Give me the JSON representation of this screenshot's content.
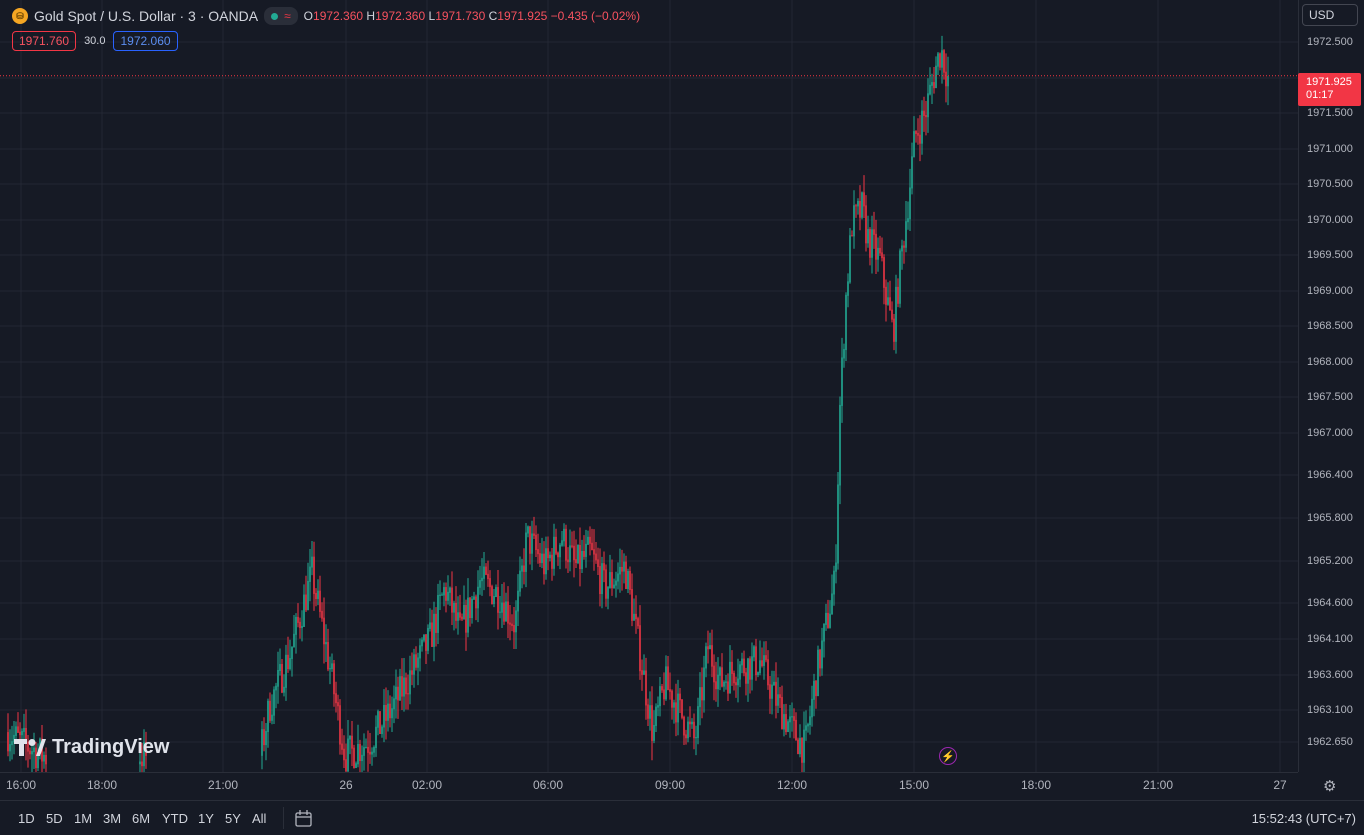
{
  "symbol": {
    "title": "Gold Spot / U.S. Dollar · 3 · OANDA",
    "icon": "gold-coin-icon",
    "status_icon": "market-status-dot-icon",
    "wave_icon": "wave-icon"
  },
  "ohlc": {
    "o_key": "O",
    "o_val": "1972.360",
    "h_key": "H",
    "h_val": "1972.360",
    "l_key": "L",
    "l_val": "1971.730",
    "c_key": "C",
    "c_val": "1971.925",
    "change": "−0.435 (−0.02%)"
  },
  "order": {
    "sell_price": "1971.760",
    "spread": "30.0",
    "buy_price": "1972.060"
  },
  "currency": "USD",
  "last_price": {
    "price": "1971.925",
    "countdown": "01:17"
  },
  "price_axis": [
    "1972.500",
    "1972.000",
    "1971.500",
    "1971.000",
    "1970.500",
    "1970.000",
    "1969.500",
    "1969.000",
    "1968.500",
    "1968.000",
    "1967.500",
    "1967.000",
    "1966.400",
    "1965.800",
    "1965.200",
    "1964.600",
    "1964.100",
    "1963.600",
    "1963.100",
    "1962.650"
  ],
  "time_axis": [
    "16:00",
    "18:00",
    "21:00",
    "26",
    "02:00",
    "06:00",
    "09:00",
    "12:00",
    "15:00",
    "18:00",
    "21:00",
    "27"
  ],
  "ranges": [
    "1D",
    "5D",
    "1M",
    "3M",
    "6M",
    "YTD",
    "1Y",
    "5Y",
    "All"
  ],
  "clock": "15:52:43 (UTC+7)",
  "logo": "TradingView",
  "colors": {
    "up": "#22ab94",
    "down": "#f23645",
    "background": "#161a25",
    "grid": "#232734"
  },
  "chart_data": {
    "type": "candlestick",
    "interval": "3",
    "ylim": [
      1962.4,
      1972.8
    ],
    "anchors": [
      [
        0,
        1963.0
      ],
      [
        20,
        1962.8
      ],
      [
        43,
        1962.6
      ],
      [
        110,
        1962.6
      ],
      [
        143,
        1962.6
      ],
      [
        260,
        1962.6
      ],
      [
        270,
        1963.3
      ],
      [
        290,
        1964.0
      ],
      [
        312,
        1965.1
      ],
      [
        330,
        1963.8
      ],
      [
        345,
        1962.6
      ],
      [
        370,
        1962.8
      ],
      [
        390,
        1963.2
      ],
      [
        410,
        1963.7
      ],
      [
        430,
        1964.2
      ],
      [
        445,
        1964.9
      ],
      [
        460,
        1964.3
      ],
      [
        480,
        1965.0
      ],
      [
        500,
        1964.8
      ],
      [
        515,
        1964.4
      ],
      [
        527,
        1965.6
      ],
      [
        545,
        1965.2
      ],
      [
        562,
        1965.6
      ],
      [
        575,
        1965.2
      ],
      [
        590,
        1965.4
      ],
      [
        605,
        1964.9
      ],
      [
        625,
        1965.2
      ],
      [
        640,
        1964.0
      ],
      [
        653,
        1962.9
      ],
      [
        665,
        1963.6
      ],
      [
        680,
        1963.2
      ],
      [
        695,
        1962.8
      ],
      [
        708,
        1964.1
      ],
      [
        720,
        1963.6
      ],
      [
        735,
        1963.8
      ],
      [
        760,
        1963.9
      ],
      [
        775,
        1963.4
      ],
      [
        790,
        1963.0
      ],
      [
        805,
        1962.7
      ],
      [
        815,
        1963.6
      ],
      [
        825,
        1964.3
      ],
      [
        835,
        1965.0
      ],
      [
        840,
        1967.4
      ],
      [
        846,
        1968.9
      ],
      [
        852,
        1969.9
      ],
      [
        862,
        1970.1
      ],
      [
        868,
        1969.7
      ],
      [
        880,
        1969.4
      ],
      [
        893,
        1968.4
      ],
      [
        900,
        1969.3
      ],
      [
        908,
        1970.2
      ],
      [
        915,
        1971.1
      ],
      [
        925,
        1971.4
      ],
      [
        935,
        1972.0
      ],
      [
        941,
        1972.3
      ],
      [
        948,
        1971.9
      ]
    ]
  }
}
